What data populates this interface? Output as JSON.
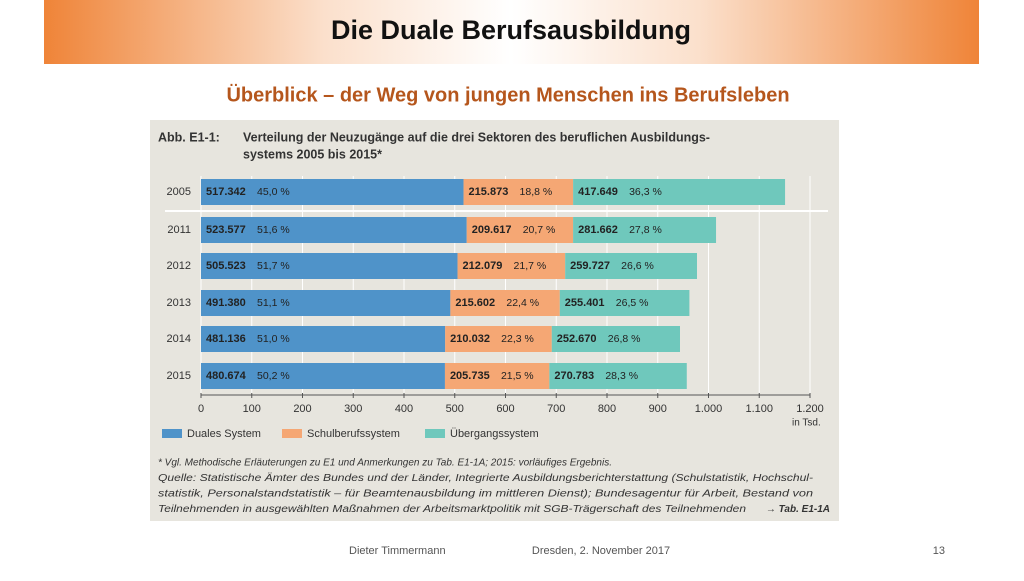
{
  "slide": {
    "title": "Die Duale Berufsausbildung",
    "subtitle": "Überblick – der Weg von jungen Menschen ins Berufsleben",
    "footer_author": "Dieter Timmermann",
    "footer_date": "Dresden, 2. November 2017",
    "page_number": "13"
  },
  "chart_data": {
    "type": "stacked_bar_horizontal",
    "figure_label": "Abb. E1-1:",
    "title_lines": [
      "Verteilung der Neuzugänge auf die drei Sektoren des beruflichen Ausbildungs-",
      "systems 2005 bis 2015*"
    ],
    "categories": [
      "2005",
      "2011",
      "2012",
      "2013",
      "2014",
      "2015"
    ],
    "series": [
      {
        "name": "Duales System",
        "color": "#4f93c9",
        "values": [
          517.342,
          523.577,
          505.523,
          491.38,
          481.136,
          480.674
        ],
        "value_labels": [
          "517.342",
          "523.577",
          "505.523",
          "491.380",
          "481.136",
          "480.674"
        ],
        "shares": [
          45.0,
          51.6,
          51.7,
          51.1,
          51.0,
          50.2
        ],
        "share_labels": [
          "45,0 %",
          "51,6 %",
          "51,7 %",
          "51,1 %",
          "51,0 %",
          "50,2 %"
        ]
      },
      {
        "name": "Schulberufssystem",
        "color": "#f5a774",
        "values": [
          215.873,
          209.617,
          212.079,
          215.602,
          210.032,
          205.735
        ],
        "value_labels": [
          "215.873",
          "209.617",
          "212.079",
          "215.602",
          "210.032",
          "205.735"
        ],
        "shares": [
          18.8,
          20.7,
          21.7,
          22.4,
          22.3,
          21.5
        ],
        "share_labels": [
          "18,8 %",
          "20,7 %",
          "21,7 %",
          "22,4 %",
          "22,3 %",
          "21,5 %"
        ]
      },
      {
        "name": "Übergangssystem",
        "color": "#6fc8bc",
        "values": [
          417.649,
          281.662,
          259.727,
          255.401,
          252.67,
          270.783
        ],
        "value_labels": [
          "417.649",
          "281.662",
          "259.727",
          "255.401",
          "252.670",
          "270.783"
        ],
        "shares": [
          36.3,
          27.8,
          26.6,
          26.5,
          26.8,
          28.3
        ],
        "share_labels": [
          "36,3 %",
          "27,8 %",
          "26,6 %",
          "26,5 %",
          "26,8 %",
          "28,3 %"
        ]
      }
    ],
    "xlim": [
      0,
      1200
    ],
    "xticks": [
      0,
      100,
      200,
      300,
      400,
      500,
      600,
      700,
      800,
      900,
      {
        "value": 1000,
        "label": "1.000"
      },
      {
        "value": 1100,
        "label": "1.100"
      },
      {
        "value": 1200,
        "label": "1.200"
      }
    ],
    "x_unit": "in Tsd.",
    "grid": true,
    "notes": [
      "* Vgl. Methodische Erläuterungen zu E1 und Anmerkungen zu Tab. E1-1A; 2015: vorläufiges Ergebnis.",
      "Quelle: Statistische Ämter des Bundes und der Länder, Integrierte Ausbildungsberichterstattung (Schulstatistik, Hochschul-",
      "statistik, Personalstandstatistik – für Beamtenausbildung im mittleren Dienst); Bundesagentur für Arbeit, Bestand von",
      "Teilnehmenden in ausgewählten Maßnahmen der Arbeitsmarktpolitik mit SGB-Trägerschaft des Teilnehmenden"
    ],
    "note_reference": "→ Tab. E1-1A"
  }
}
